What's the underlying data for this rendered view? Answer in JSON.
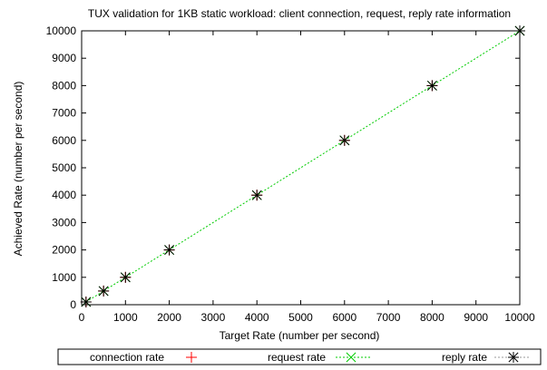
{
  "chart_data": {
    "type": "line",
    "title": "TUX validation for 1KB static workload: client connection, request, reply rate information",
    "xlabel": "Target Rate (number per second)",
    "ylabel": "Achieved Rate (number per second)",
    "xlim": [
      0,
      10000
    ],
    "ylim": [
      0,
      10000
    ],
    "xticks": [
      0,
      1000,
      2000,
      3000,
      4000,
      5000,
      6000,
      7000,
      8000,
      9000,
      10000
    ],
    "yticks": [
      0,
      1000,
      2000,
      3000,
      4000,
      5000,
      6000,
      7000,
      8000,
      9000,
      10000
    ],
    "grid": false,
    "legend_position": "bottom",
    "x": [
      100,
      500,
      1000,
      2000,
      4000,
      6000,
      8000,
      10000
    ],
    "series": [
      {
        "name": "connection rate",
        "marker": "plus",
        "color": "#ff0000",
        "line": false,
        "values": [
          100,
          500,
          1000,
          2000,
          4000,
          6000,
          8000,
          10000
        ]
      },
      {
        "name": "request rate",
        "marker": "cross",
        "color": "#00cc00",
        "line": true,
        "values": [
          100,
          500,
          1000,
          2000,
          4000,
          6000,
          8000,
          10000
        ]
      },
      {
        "name": "reply rate",
        "marker": "asterisk",
        "color": "#000000",
        "line": false,
        "values": [
          100,
          500,
          1000,
          2000,
          4000,
          6000,
          8000,
          10000
        ]
      }
    ]
  }
}
